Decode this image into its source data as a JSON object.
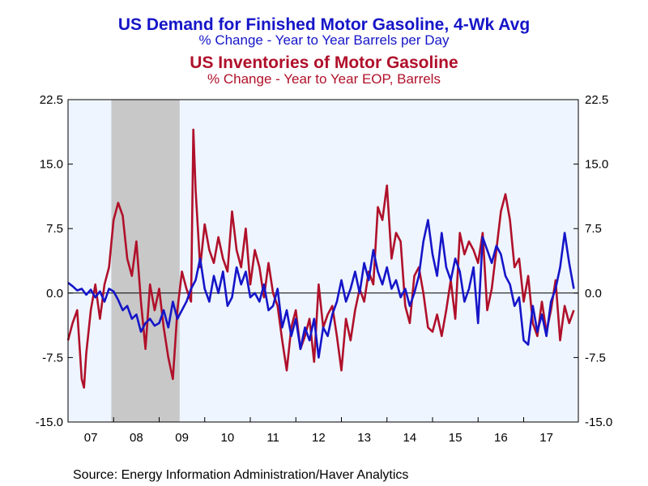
{
  "titles": {
    "line1": "US Demand for Finished Motor Gasoline, 4-Wk Avg",
    "line2": "% Change - Year to Year   Barrels per Day",
    "line3": "US Inventories of Motor Gasoline",
    "line4": "% Change - Year to Year    EOP, Barrels"
  },
  "source": "Source:  Energy Information Administration/Haver Analytics",
  "colors": {
    "demand": "#1515c8",
    "inventories": "#b0102a",
    "plot_bg": "#eef5ff",
    "recession": "#c8c8c8"
  },
  "chart_data": {
    "type": "line",
    "ylim": [
      -15,
      22.5
    ],
    "xlim": [
      2007.0,
      2018.2
    ],
    "y_ticks": [
      "22.5",
      "15.0",
      "7.5",
      "0.0",
      "-7.5",
      "-15.0"
    ],
    "y_tick_values": [
      22.5,
      15,
      7.5,
      0,
      -7.5,
      -15
    ],
    "x_tick_labels": [
      "07",
      "08",
      "09",
      "10",
      "11",
      "12",
      "13",
      "14",
      "15",
      "16",
      "17"
    ],
    "recession": [
      2007.95,
      2009.45
    ],
    "zero_line": true,
    "series": [
      {
        "key": "demand",
        "x": [
          2007.0,
          2007.1,
          2007.2,
          2007.3,
          2007.4,
          2007.5,
          2007.6,
          2007.7,
          2007.8,
          2007.9,
          2008.0,
          2008.1,
          2008.2,
          2008.3,
          2008.4,
          2008.5,
          2008.6,
          2008.7,
          2008.8,
          2008.9,
          2009.0,
          2009.1,
          2009.2,
          2009.3,
          2009.4,
          2009.5,
          2009.6,
          2009.7,
          2009.8,
          2009.9,
          2010.0,
          2010.1,
          2010.2,
          2010.3,
          2010.4,
          2010.5,
          2010.6,
          2010.7,
          2010.8,
          2010.9,
          2011.0,
          2011.1,
          2011.2,
          2011.3,
          2011.4,
          2011.5,
          2011.6,
          2011.7,
          2011.8,
          2011.9,
          2012.0,
          2012.1,
          2012.2,
          2012.3,
          2012.4,
          2012.5,
          2012.6,
          2012.7,
          2012.8,
          2012.9,
          2013.0,
          2013.1,
          2013.2,
          2013.3,
          2013.4,
          2013.5,
          2013.6,
          2013.7,
          2013.8,
          2013.9,
          2014.0,
          2014.1,
          2014.2,
          2014.3,
          2014.4,
          2014.5,
          2014.6,
          2014.7,
          2014.8,
          2014.9,
          2015.0,
          2015.1,
          2015.2,
          2015.3,
          2015.4,
          2015.5,
          2015.6,
          2015.7,
          2015.8,
          2015.9,
          2016.0,
          2016.1,
          2016.2,
          2016.3,
          2016.4,
          2016.5,
          2016.6,
          2016.7,
          2016.8,
          2016.9,
          2017.0,
          2017.1,
          2017.2,
          2017.3,
          2017.4,
          2017.5,
          2017.6,
          2017.7,
          2017.8,
          2017.9,
          2018.0,
          2018.1
        ],
        "values": [
          1.2,
          0.8,
          0.3,
          0.5,
          -0.2,
          0.4,
          -0.5,
          0.2,
          -1.0,
          0.5,
          0.2,
          -0.8,
          -2.0,
          -1.5,
          -3.0,
          -2.5,
          -4.5,
          -3.5,
          -3.0,
          -3.8,
          -3.5,
          -2.0,
          -4.0,
          -1.0,
          -3.0,
          -2.0,
          -1.0,
          0.5,
          1.5,
          4.0,
          0.5,
          -1.0,
          2.0,
          0.0,
          2.5,
          -1.5,
          -0.5,
          3.0,
          1.0,
          2.5,
          -0.5,
          0.0,
          -1.0,
          1.0,
          -2.0,
          -1.5,
          0.5,
          -4.0,
          -2.0,
          -5.0,
          -3.0,
          -6.5,
          -4.0,
          -5.5,
          -3.0,
          -7.5,
          -4.0,
          -5.0,
          -2.5,
          -1.0,
          1.5,
          -1.0,
          0.5,
          2.5,
          0.0,
          3.5,
          1.5,
          5.0,
          2.5,
          1.0,
          3.0,
          0.5,
          1.5,
          -0.5,
          0.5,
          -1.5,
          0.0,
          2.0,
          6.0,
          8.5,
          4.5,
          2.0,
          7.0,
          3.0,
          1.5,
          4.0,
          2.5,
          -1.0,
          0.5,
          3.0,
          -3.5,
          6.5,
          5.0,
          3.5,
          5.5,
          4.5,
          2.0,
          1.0,
          -1.5,
          -0.5,
          -5.5,
          -6.0,
          -1.5,
          -4.5,
          -2.5,
          -5.0,
          -1.0,
          0.5,
          3.0,
          7.0,
          3.5,
          0.5
        ]
      },
      {
        "key": "inventories",
        "x": [
          2007.0,
          2007.1,
          2007.2,
          2007.3,
          2007.35,
          2007.4,
          2007.5,
          2007.6,
          2007.7,
          2007.8,
          2007.9,
          2008.0,
          2008.1,
          2008.2,
          2008.3,
          2008.4,
          2008.5,
          2008.6,
          2008.7,
          2008.8,
          2008.9,
          2009.0,
          2009.1,
          2009.2,
          2009.3,
          2009.4,
          2009.5,
          2009.6,
          2009.7,
          2009.75,
          2009.8,
          2009.9,
          2010.0,
          2010.1,
          2010.2,
          2010.3,
          2010.4,
          2010.5,
          2010.6,
          2010.7,
          2010.8,
          2010.9,
          2011.0,
          2011.1,
          2011.2,
          2011.3,
          2011.4,
          2011.5,
          2011.6,
          2011.7,
          2011.8,
          2011.9,
          2012.0,
          2012.1,
          2012.2,
          2012.3,
          2012.4,
          2012.5,
          2012.6,
          2012.7,
          2012.8,
          2012.9,
          2013.0,
          2013.1,
          2013.2,
          2013.3,
          2013.4,
          2013.5,
          2013.6,
          2013.7,
          2013.8,
          2013.9,
          2014.0,
          2014.1,
          2014.2,
          2014.3,
          2014.4,
          2014.5,
          2014.6,
          2014.7,
          2014.8,
          2014.9,
          2015.0,
          2015.1,
          2015.2,
          2015.3,
          2015.4,
          2015.5,
          2015.6,
          2015.7,
          2015.8,
          2015.9,
          2016.0,
          2016.1,
          2016.2,
          2016.3,
          2016.4,
          2016.5,
          2016.6,
          2016.7,
          2016.8,
          2016.9,
          2017.0,
          2017.1,
          2017.2,
          2017.3,
          2017.4,
          2017.5,
          2017.6,
          2017.7,
          2017.8,
          2017.9,
          2018.0,
          2018.1
        ],
        "values": [
          -5.5,
          -3.5,
          -2.0,
          -10.0,
          -11.0,
          -7.0,
          -2.0,
          1.0,
          -3.0,
          1.0,
          3.0,
          8.5,
          10.5,
          9.0,
          4.0,
          2.0,
          6.0,
          -1.0,
          -6.5,
          1.0,
          -2.0,
          0.5,
          -4.0,
          -7.5,
          -10.0,
          -2.0,
          2.5,
          0.5,
          -1.0,
          19.0,
          12.0,
          3.0,
          8.0,
          5.0,
          3.5,
          6.5,
          4.0,
          2.5,
          9.5,
          5.0,
          3.0,
          7.5,
          1.0,
          5.0,
          3.0,
          -0.5,
          3.5,
          0.0,
          -1.5,
          -5.5,
          -9.0,
          -4.0,
          -2.0,
          -6.5,
          -5.0,
          -3.0,
          -8.0,
          1.0,
          -4.0,
          -2.5,
          -1.5,
          -5.0,
          -9.0,
          -3.0,
          -5.5,
          -2.0,
          0.5,
          -1.0,
          2.5,
          1.0,
          10.0,
          8.5,
          12.5,
          4.0,
          7.0,
          6.0,
          -1.5,
          -3.5,
          2.0,
          3.0,
          0.0,
          -4.0,
          -4.5,
          -2.5,
          -5.0,
          -2.0,
          1.5,
          -3.0,
          7.0,
          4.5,
          6.0,
          5.0,
          3.5,
          7.0,
          -2.0,
          0.5,
          5.0,
          9.5,
          11.5,
          8.5,
          3.0,
          4.0,
          -1.0,
          2.0,
          -3.5,
          -5.0,
          -1.0,
          -4.5,
          -2.0,
          1.5,
          -5.5,
          -1.5,
          -3.5,
          -2.0
        ]
      }
    ]
  }
}
